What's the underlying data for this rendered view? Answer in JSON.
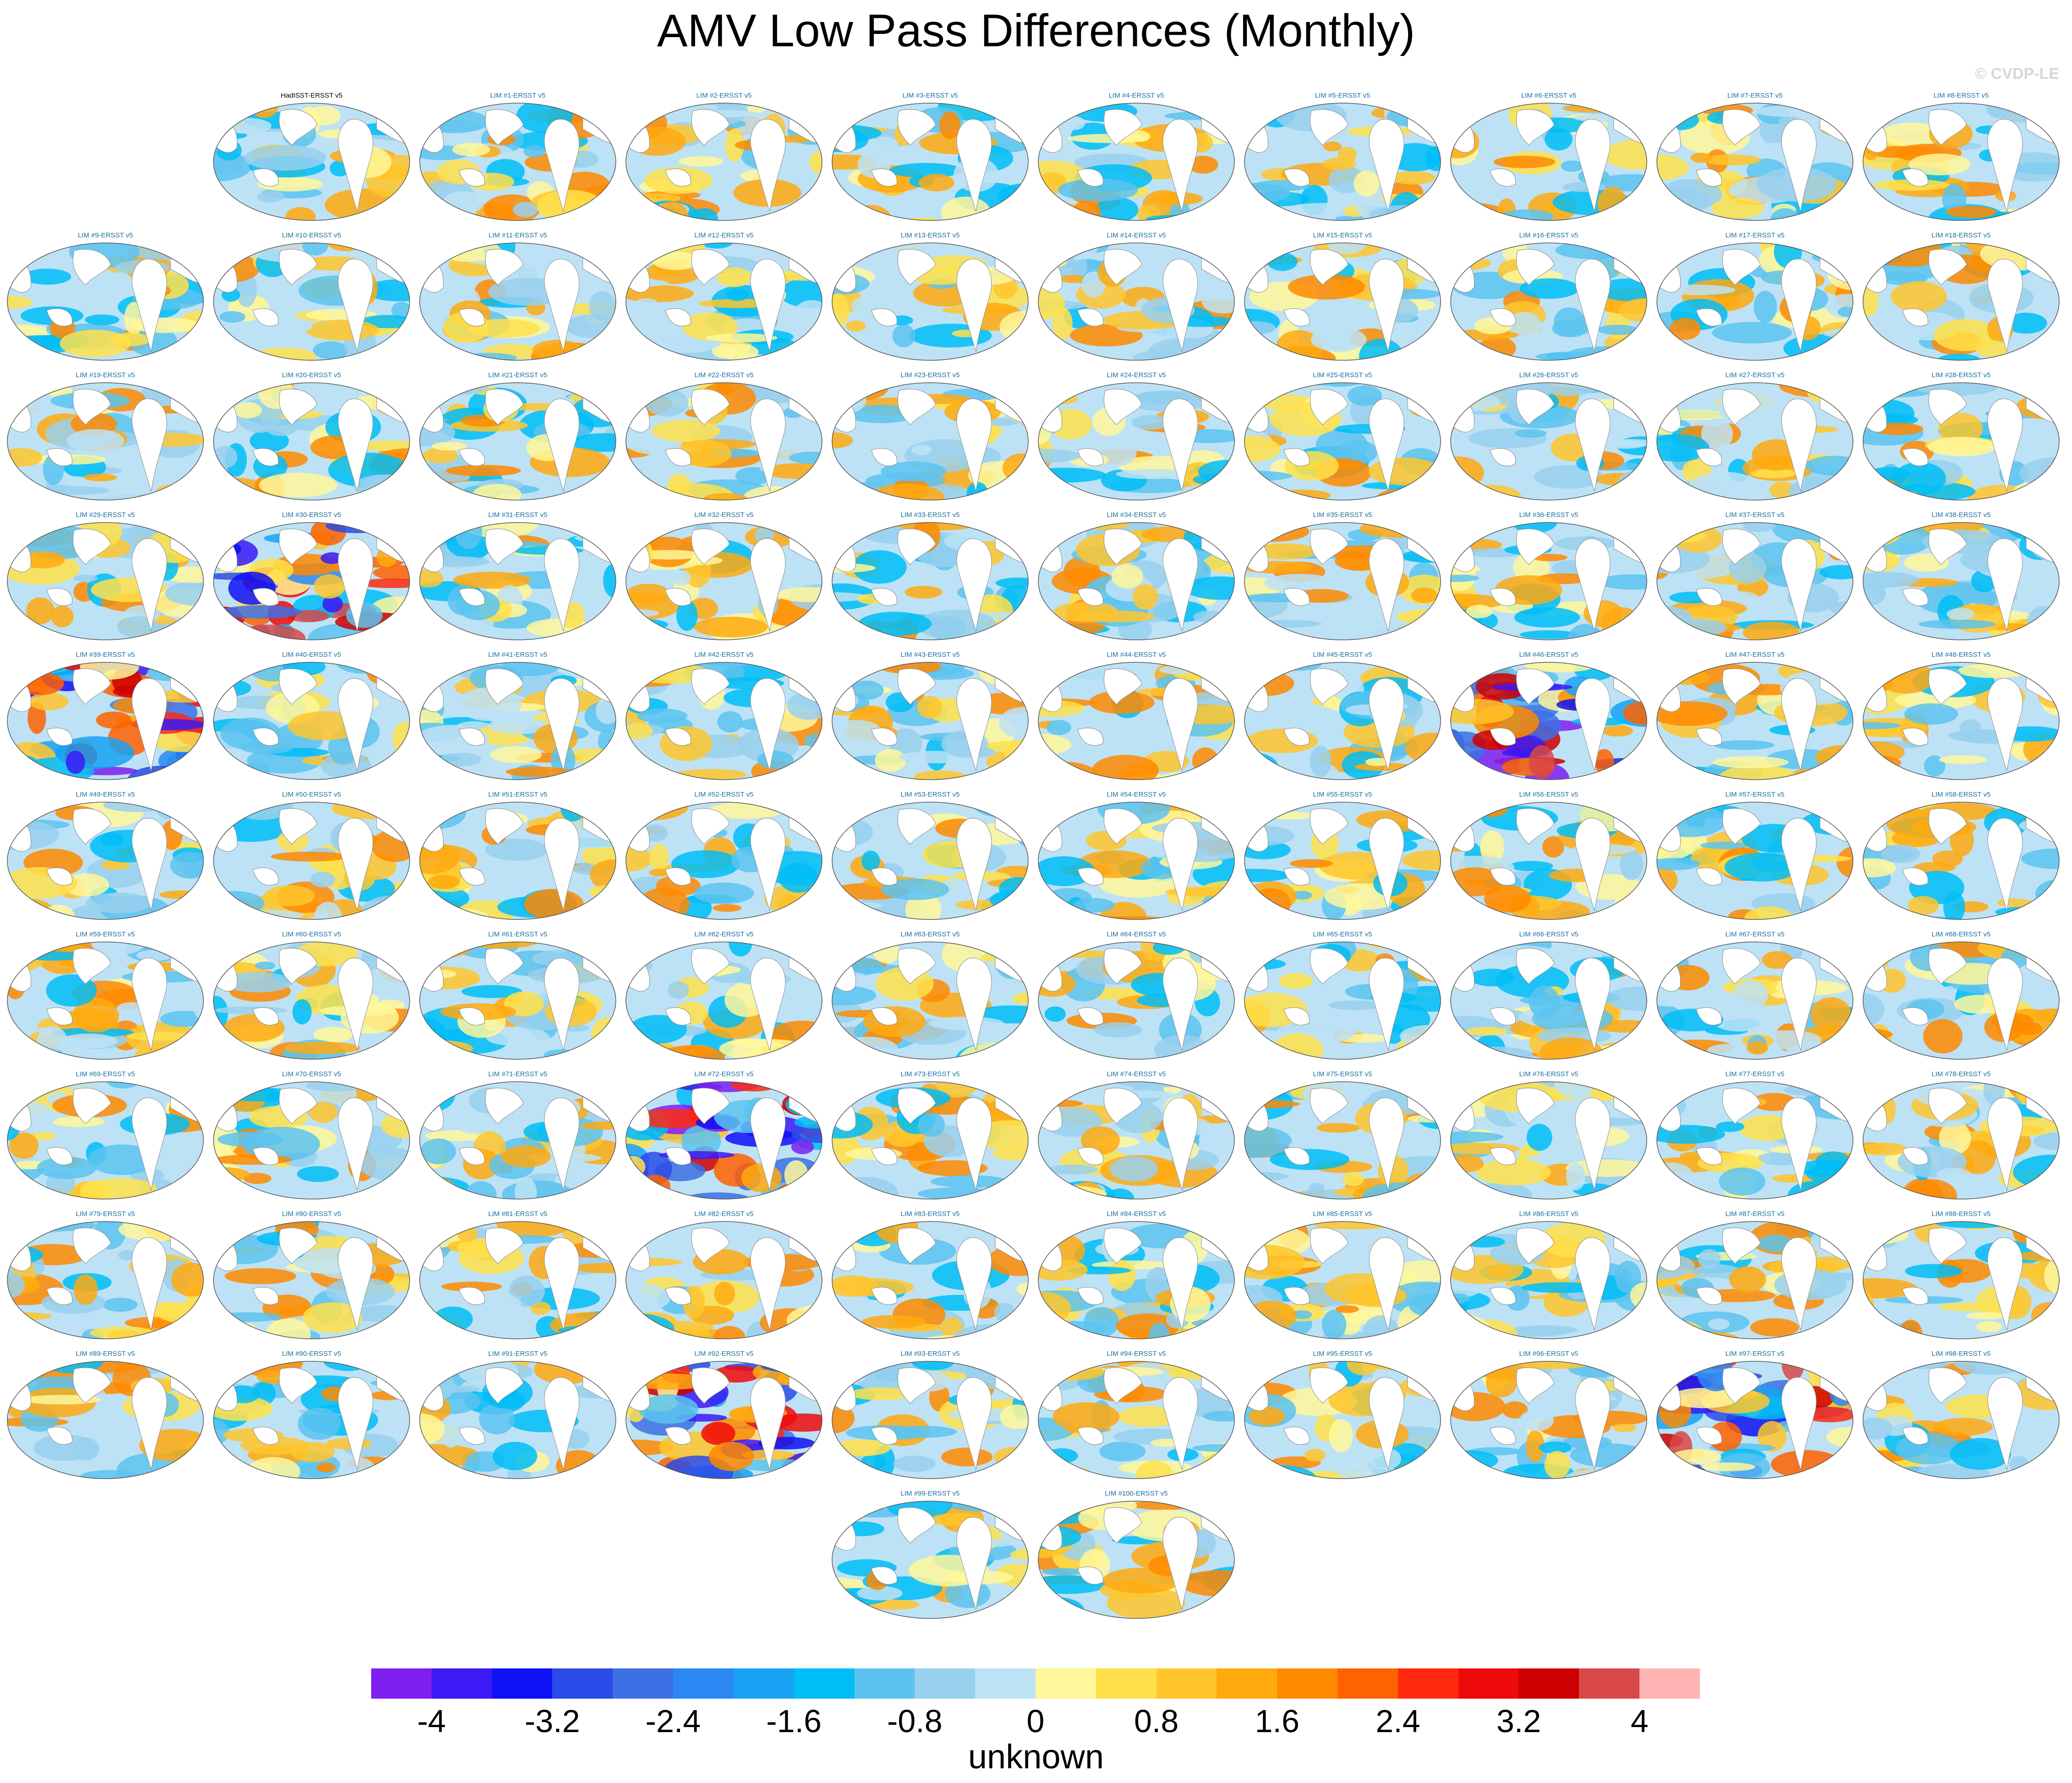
{
  "title": "AMV Low Pass Differences (Monthly)",
  "credit": "© CVDP-LE",
  "panels": [
    {
      "label": "HadISST-ERSST v5"
    },
    {
      "label": "LIM #1-ERSST v5"
    },
    {
      "label": "LIM #2-ERSST v5"
    },
    {
      "label": "LIM #3-ERSST v5"
    },
    {
      "label": "LIM #4-ERSST v5"
    },
    {
      "label": "LIM #5-ERSST v5"
    },
    {
      "label": "LIM #6-ERSST v5"
    },
    {
      "label": "LIM #7-ERSST v5"
    },
    {
      "label": "LIM #8-ERSST v5"
    },
    {
      "label": "LIM #9-ERSST v5"
    },
    {
      "label": "LIM #10-ERSST v5"
    },
    {
      "label": "LIM #11-ERSST v5"
    },
    {
      "label": "LIM #12-ERSST v5"
    },
    {
      "label": "LIM #13-ERSST v5"
    },
    {
      "label": "LIM #14-ERSST v5"
    },
    {
      "label": "LIM #15-ERSST v5"
    },
    {
      "label": "LIM #16-ERSST v5"
    },
    {
      "label": "LIM #17-ERSST v5"
    },
    {
      "label": "LIM #18-ERSST v5"
    },
    {
      "label": "LIM #19-ERSST v5"
    },
    {
      "label": "LIM #20-ERSST v5"
    },
    {
      "label": "LIM #21-ERSST v5"
    },
    {
      "label": "LIM #22-ERSST v5"
    },
    {
      "label": "LIM #23-ERSST v5"
    },
    {
      "label": "LIM #24-ERSST v5"
    },
    {
      "label": "LIM #25-ERSST v5"
    },
    {
      "label": "LIM #26-ERSST v5"
    },
    {
      "label": "LIM #27-ERSST v5"
    },
    {
      "label": "LIM #28-ERSST v5"
    },
    {
      "label": "LIM #29-ERSST v5"
    },
    {
      "label": "LIM #30-ERSST v5"
    },
    {
      "label": "LIM #31-ERSST v5"
    },
    {
      "label": "LIM #32-ERSST v5"
    },
    {
      "label": "LIM #33-ERSST v5"
    },
    {
      "label": "LIM #34-ERSST v5"
    },
    {
      "label": "LIM #35-ERSST v5"
    },
    {
      "label": "LIM #36-ERSST v5"
    },
    {
      "label": "LIM #37-ERSST v5"
    },
    {
      "label": "LIM #38-ERSST v5"
    },
    {
      "label": "LIM #39-ERSST v5"
    },
    {
      "label": "LIM #40-ERSST v5"
    },
    {
      "label": "LIM #41-ERSST v5"
    },
    {
      "label": "LIM #42-ERSST v5"
    },
    {
      "label": "LIM #43-ERSST v5"
    },
    {
      "label": "LIM #44-ERSST v5"
    },
    {
      "label": "LIM #45-ERSST v5"
    },
    {
      "label": "LIM #46-ERSST v5"
    },
    {
      "label": "LIM #47-ERSST v5"
    },
    {
      "label": "LIM #48-ERSST v5"
    },
    {
      "label": "LIM #49-ERSST v5"
    },
    {
      "label": "LIM #50-ERSST v5"
    },
    {
      "label": "LIM #51-ERSST v5"
    },
    {
      "label": "LIM #52-ERSST v5"
    },
    {
      "label": "LIM #53-ERSST v5"
    },
    {
      "label": "LIM #54-ERSST v5"
    },
    {
      "label": "LIM #55-ERSST v5"
    },
    {
      "label": "LIM #56-ERSST v5"
    },
    {
      "label": "LIM #57-ERSST v5"
    },
    {
      "label": "LIM #58-ERSST v5"
    },
    {
      "label": "LIM #59-ERSST v5"
    },
    {
      "label": "LIM #60-ERSST v5"
    },
    {
      "label": "LIM #61-ERSST v5"
    },
    {
      "label": "LIM #62-ERSST v5"
    },
    {
      "label": "LIM #63-ERSST v5"
    },
    {
      "label": "LIM #64-ERSST v5"
    },
    {
      "label": "LIM #65-ERSST v5"
    },
    {
      "label": "LIM #66-ERSST v5"
    },
    {
      "label": "LIM #67-ERSST v5"
    },
    {
      "label": "LIM #68-ERSST v5"
    },
    {
      "label": "LIM #69-ERSST v5"
    },
    {
      "label": "LIM #70-ERSST v5"
    },
    {
      "label": "LIM #71-ERSST v5"
    },
    {
      "label": "LIM #72-ERSST v5"
    },
    {
      "label": "LIM #73-ERSST v5"
    },
    {
      "label": "LIM #74-ERSST v5"
    },
    {
      "label": "LIM #75-ERSST v5"
    },
    {
      "label": "LIM #76-ERSST v5"
    },
    {
      "label": "LIM #77-ERSST v5"
    },
    {
      "label": "LIM #78-ERSST v5"
    },
    {
      "label": "LIM #79-ERSST v5"
    },
    {
      "label": "LIM #80-ERSST v5"
    },
    {
      "label": "LIM #81-ERSST v5"
    },
    {
      "label": "LIM #82-ERSST v5"
    },
    {
      "label": "LIM #83-ERSST v5"
    },
    {
      "label": "LIM #84-ERSST v5"
    },
    {
      "label": "LIM #85-ERSST v5"
    },
    {
      "label": "LIM #86-ERSST v5"
    },
    {
      "label": "LIM #87-ERSST v5"
    },
    {
      "label": "LIM #88-ERSST v5"
    },
    {
      "label": "LIM #89-ERSST v5"
    },
    {
      "label": "LIM #90-ERSST v5"
    },
    {
      "label": "LIM #91-ERSST v5"
    },
    {
      "label": "LIM #92-ERSST v5"
    },
    {
      "label": "LIM #93-ERSST v5"
    },
    {
      "label": "LIM #94-ERSST v5"
    },
    {
      "label": "LIM #95-ERSST v5"
    },
    {
      "label": "LIM #96-ERSST v5"
    },
    {
      "label": "LIM #97-ERSST v5"
    },
    {
      "label": "LIM #98-ERSST v5"
    },
    {
      "label": "LIM #99-ERSST v5"
    },
    {
      "label": "LIM #100-ERSST v5"
    }
  ],
  "colorbar": {
    "colors": [
      "#7f1fef",
      "#3b1af5",
      "#1010f5",
      "#2a4be8",
      "#3d70e4",
      "#2b88f2",
      "#18a2f5",
      "#00bdf7",
      "#5cc3f0",
      "#99d0ee",
      "#bde2f5",
      "#fff79a",
      "#ffe04a",
      "#ffc52b",
      "#ffa90f",
      "#ff8a00",
      "#ff6200",
      "#ff2a10",
      "#ee0a0a",
      "#cc0000",
      "#d84848",
      "#ffb4b4"
    ],
    "tick_labels": [
      "-4",
      "-3.2",
      "-2.4",
      "-1.6",
      "-0.8",
      "0",
      "0.8",
      "1.6",
      "2.4",
      "3.2",
      "4"
    ],
    "units": "unknown"
  }
}
